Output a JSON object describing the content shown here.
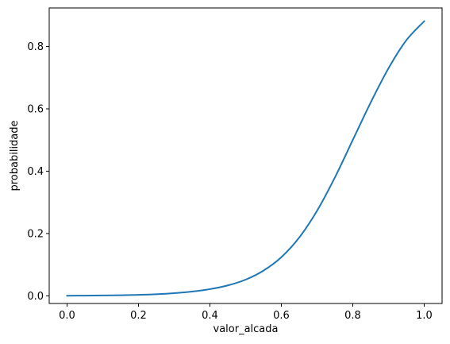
{
  "chart_data": {
    "type": "line",
    "xlabel": "valor_alcada",
    "ylabel": "probabilidade",
    "xlim": [
      -0.05,
      1.05
    ],
    "ylim": [
      -0.0245,
      0.9237
    ],
    "xticks": [
      0.0,
      0.2,
      0.4,
      0.6,
      0.8,
      1.0
    ],
    "xtick_labels": [
      "0.0",
      "0.2",
      "0.4",
      "0.6",
      "0.8",
      "1.0"
    ],
    "yticks": [
      0.0,
      0.2,
      0.4,
      0.6,
      0.8
    ],
    "ytick_labels": [
      "0.0",
      "0.2",
      "0.4",
      "0.6",
      "0.8"
    ],
    "grid": false,
    "legend": "none",
    "series": [
      {
        "color": "#1f77b4",
        "x": [
          0.0,
          0.05,
          0.1,
          0.15,
          0.2,
          0.25,
          0.3,
          0.35,
          0.4,
          0.45,
          0.5,
          0.55,
          0.6,
          0.65,
          0.7,
          0.75,
          0.8,
          0.85,
          0.9,
          0.95,
          1.0
        ],
        "y": [
          0.0005,
          0.0008,
          0.0013,
          0.002,
          0.0033,
          0.0052,
          0.0085,
          0.0136,
          0.0215,
          0.0335,
          0.052,
          0.081,
          0.124,
          0.187,
          0.273,
          0.38,
          0.5,
          0.62,
          0.73,
          0.82,
          0.881
        ]
      }
    ]
  }
}
